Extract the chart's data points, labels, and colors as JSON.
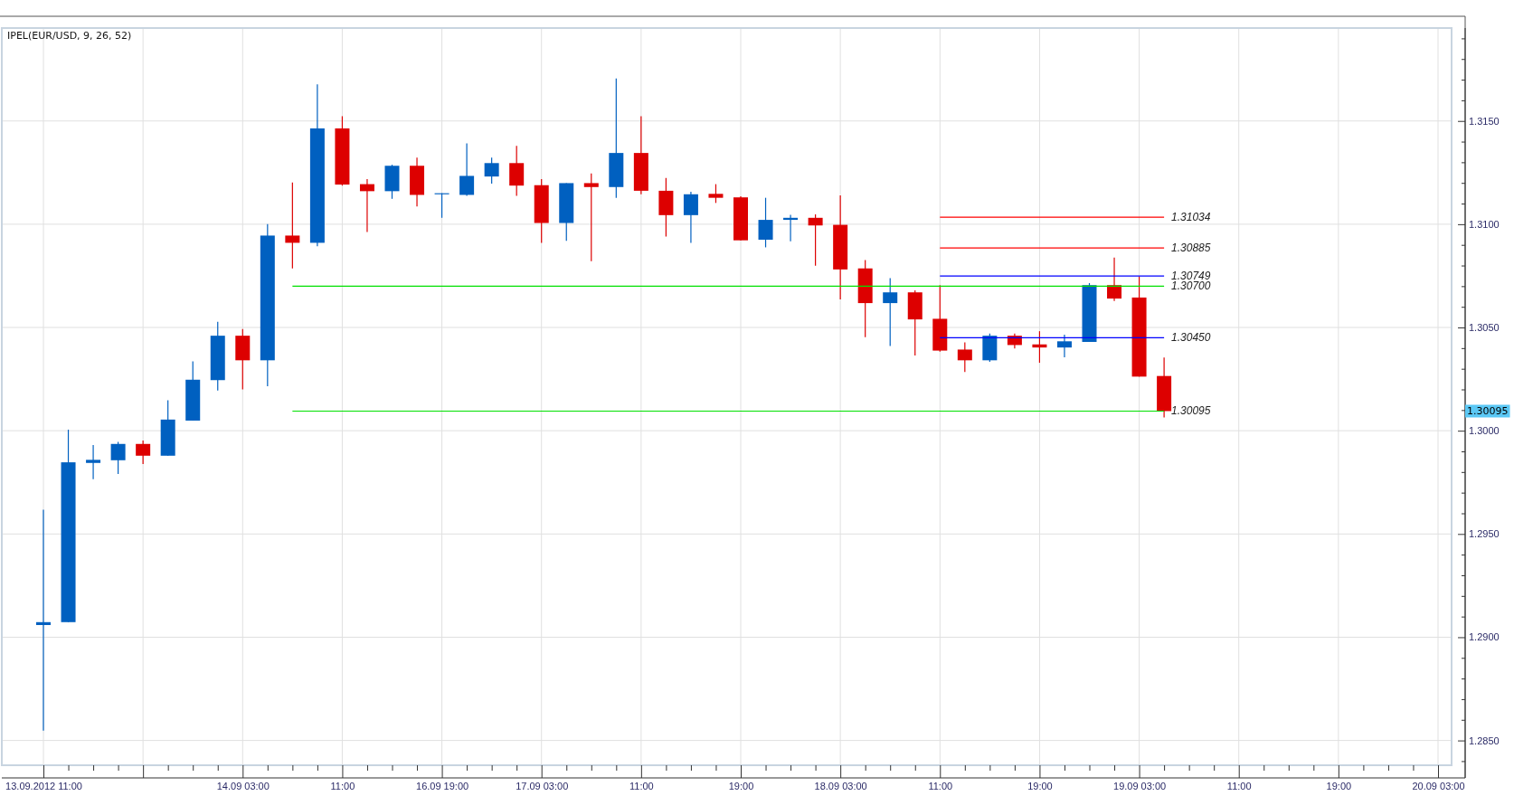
{
  "chart_data": {
    "type": "candlestick",
    "title": "IPEL(EUR/USD, 9, 26, 52)",
    "categories": [
      "13.09.2012 11:00",
      null,
      null,
      null,
      null,
      null,
      null,
      null,
      "14.09 03:00",
      null,
      null,
      null,
      "11:00",
      null,
      null,
      null,
      "16.09 19:00",
      null,
      null,
      null,
      "17.09 03:00",
      null,
      null,
      null,
      "11:00",
      null,
      null,
      null,
      "19:00",
      null,
      null,
      null,
      "18.09 03:00",
      null,
      null,
      null,
      "11:00",
      null,
      null,
      null,
      "19:00",
      null,
      null,
      null,
      "19.09 03:00",
      null,
      null,
      null,
      "11:00",
      null,
      null,
      null,
      "19:00",
      null,
      null,
      null,
      "20.09 03:00"
    ],
    "ohlc": [
      [
        1.29059,
        1.29617,
        1.28548,
        1.29073
      ],
      [
        1.29073,
        1.30005,
        1.29073,
        1.29847
      ],
      [
        1.29844,
        1.29931,
        1.29765,
        1.29859
      ],
      [
        1.29857,
        1.29946,
        1.2979,
        1.29936
      ],
      [
        1.29936,
        1.29953,
        1.29839,
        1.29879
      ],
      [
        1.29879,
        1.30148,
        1.29879,
        1.30054
      ],
      [
        1.30049,
        1.30336,
        1.30049,
        1.30247
      ],
      [
        1.30245,
        1.30527,
        1.30195,
        1.3046
      ],
      [
        1.3046,
        1.30492,
        1.302,
        1.30341
      ],
      [
        1.30341,
        1.31001,
        1.30215,
        1.30945
      ],
      [
        1.30945,
        1.31202,
        1.30786,
        1.3091
      ],
      [
        1.3091,
        1.31677,
        1.30893,
        1.31464
      ],
      [
        1.31464,
        1.31523,
        1.31187,
        1.31192
      ],
      [
        1.31194,
        1.31219,
        1.30962,
        1.3116
      ],
      [
        1.3116,
        1.31288,
        1.31123,
        1.31283
      ],
      [
        1.31283,
        1.31323,
        1.31086,
        1.31142
      ],
      [
        1.31145,
        1.3115,
        1.31031,
        1.3115
      ],
      [
        1.31142,
        1.31392,
        1.31137,
        1.31234
      ],
      [
        1.31231,
        1.31323,
        1.31197,
        1.31296
      ],
      [
        1.31296,
        1.3138,
        1.31137,
        1.31187
      ],
      [
        1.31189,
        1.31219,
        1.3091,
        1.31006
      ],
      [
        1.31006,
        1.31199,
        1.3092,
        1.31199
      ],
      [
        1.31199,
        1.31246,
        1.30821,
        1.3118
      ],
      [
        1.3118,
        1.31706,
        1.31128,
        1.31345
      ],
      [
        1.31345,
        1.31523,
        1.31145,
        1.31162
      ],
      [
        1.31162,
        1.31224,
        1.3094,
        1.31044
      ],
      [
        1.31044,
        1.31157,
        1.3091,
        1.31145
      ],
      [
        1.31147,
        1.31194,
        1.31103,
        1.31128
      ],
      [
        1.3113,
        1.31135,
        1.30922,
        1.30922
      ],
      [
        1.30925,
        1.31128,
        1.30888,
        1.31021
      ],
      [
        1.31021,
        1.31046,
        1.30917,
        1.31031
      ],
      [
        1.31031,
        1.31048,
        1.30799,
        1.30994
      ],
      [
        1.30997,
        1.3114,
        1.30636,
        1.30781
      ],
      [
        1.30786,
        1.30826,
        1.30453,
        1.30618
      ],
      [
        1.30618,
        1.30739,
        1.3041,
        1.3067
      ],
      [
        1.3067,
        1.3068,
        1.30364,
        1.30539
      ],
      [
        1.30542,
        1.30705,
        1.30383,
        1.30388
      ],
      [
        1.30393,
        1.30428,
        1.30284,
        1.30341
      ],
      [
        1.30341,
        1.3047,
        1.30334,
        1.3046
      ],
      [
        1.3046,
        1.3047,
        1.30398,
        1.30415
      ],
      [
        1.30418,
        1.30482,
        1.30329,
        1.30403
      ],
      [
        1.30403,
        1.30465,
        1.30356,
        1.30433
      ],
      [
        1.3043,
        1.30715,
        1.3043,
        1.30705
      ],
      [
        1.30705,
        1.30838,
        1.30628,
        1.3064
      ],
      [
        1.30645,
        1.30747,
        1.30262,
        1.30262
      ],
      [
        1.30265,
        1.30354,
        1.30064,
        1.30095
      ],
      null,
      null,
      null,
      null,
      null,
      null,
      null,
      null,
      null,
      null,
      null
    ],
    "colors": [
      "#0060c0",
      "#0060c0",
      "#0060c0",
      "#0060c0",
      "#dd0000",
      "#0060c0",
      "#0060c0",
      "#0060c0",
      "#dd0000",
      "#0060c0",
      "#dd0000",
      "#0060c0",
      "#dd0000",
      "#dd0000",
      "#0060c0",
      "#dd0000",
      "#0060c0",
      "#0060c0",
      "#0060c0",
      "#dd0000",
      "#dd0000",
      "#0060c0",
      "#dd0000",
      "#0060c0",
      "#dd0000",
      "#dd0000",
      "#0060c0",
      "#dd0000",
      "#dd0000",
      "#0060c0",
      "#0060c0",
      "#dd0000",
      "#dd0000",
      "#dd0000",
      "#0060c0",
      "#dd0000",
      "#dd0000",
      "#dd0000",
      "#0060c0",
      "#dd0000",
      "#dd0000",
      "#0060c0",
      "#0060c0",
      "#dd0000",
      "#dd0000",
      "#dd0000",
      null,
      null,
      null,
      null,
      null,
      null,
      null,
      null,
      null,
      null,
      null
    ],
    "series": [
      {
        "name": "1.31034",
        "type": "line",
        "color": "#ff0000",
        "values": [
          null,
          null,
          null,
          null,
          null,
          null,
          null,
          null,
          null,
          null,
          null,
          null,
          null,
          null,
          null,
          null,
          null,
          null,
          null,
          null,
          null,
          null,
          null,
          null,
          null,
          null,
          null,
          null,
          null,
          null,
          null,
          null,
          null,
          null,
          null,
          null,
          1.31034,
          1.31034,
          1.31034,
          1.31034,
          1.31034,
          1.31034,
          1.31034,
          1.31034,
          1.31034,
          1.31034,
          null,
          null,
          null,
          null,
          null,
          null,
          null,
          null,
          null,
          null,
          null
        ]
      },
      {
        "name": "1.30885",
        "type": "line",
        "color": "#ff0000",
        "values": [
          null,
          null,
          null,
          null,
          null,
          null,
          null,
          null,
          null,
          null,
          null,
          null,
          null,
          null,
          null,
          null,
          null,
          null,
          null,
          null,
          null,
          null,
          null,
          null,
          null,
          null,
          null,
          null,
          null,
          null,
          null,
          null,
          null,
          null,
          null,
          null,
          1.30885,
          1.30885,
          1.30885,
          1.30885,
          1.30885,
          1.30885,
          1.30885,
          1.30885,
          1.30885,
          1.30885,
          null,
          null,
          null,
          null,
          null,
          null,
          null,
          null,
          null,
          null,
          null
        ]
      },
      {
        "name": "1.30749",
        "type": "line",
        "color": "#0000ff",
        "values": [
          null,
          null,
          null,
          null,
          null,
          null,
          null,
          null,
          null,
          null,
          null,
          null,
          null,
          null,
          null,
          null,
          null,
          null,
          null,
          null,
          null,
          null,
          null,
          null,
          null,
          null,
          null,
          null,
          null,
          null,
          null,
          null,
          null,
          null,
          null,
          null,
          1.30749,
          1.30749,
          1.30749,
          1.30749,
          1.30749,
          1.30749,
          1.30749,
          1.30749,
          1.30749,
          1.30749,
          null,
          null,
          null,
          null,
          null,
          null,
          null,
          null,
          null,
          null,
          null
        ]
      },
      {
        "name": "1.30700",
        "type": "line",
        "color": "#00e000",
        "values": [
          null,
          null,
          null,
          null,
          null,
          null,
          null,
          null,
          null,
          null,
          1.307,
          1.307,
          1.307,
          1.307,
          1.307,
          1.307,
          1.307,
          1.307,
          1.307,
          1.307,
          1.307,
          1.307,
          1.307,
          1.307,
          1.307,
          1.307,
          1.307,
          1.307,
          1.307,
          1.307,
          1.307,
          1.307,
          1.307,
          1.307,
          1.307,
          1.307,
          1.307,
          1.307,
          1.307,
          1.307,
          1.307,
          1.307,
          1.307,
          1.307,
          1.307,
          1.307,
          null,
          null,
          null,
          null,
          null,
          null,
          null,
          null,
          null,
          null,
          null
        ]
      },
      {
        "name": "1.30450",
        "type": "line",
        "color": "#0000ff",
        "values": [
          null,
          null,
          null,
          null,
          null,
          null,
          null,
          null,
          null,
          null,
          null,
          null,
          null,
          null,
          null,
          null,
          null,
          null,
          null,
          null,
          null,
          null,
          null,
          null,
          null,
          null,
          null,
          null,
          null,
          null,
          null,
          null,
          null,
          null,
          null,
          null,
          1.3045,
          1.3045,
          1.3045,
          1.3045,
          1.3045,
          1.3045,
          1.3045,
          1.3045,
          1.3045,
          1.3045,
          null,
          null,
          null,
          null,
          null,
          null,
          null,
          null,
          null,
          null,
          null
        ]
      },
      {
        "name": "1.30095",
        "type": "line",
        "color": "#00e000",
        "values": [
          null,
          null,
          null,
          null,
          null,
          null,
          null,
          null,
          null,
          null,
          1.30095,
          1.30095,
          1.30095,
          1.30095,
          1.30095,
          1.30095,
          1.30095,
          1.30095,
          1.30095,
          1.30095,
          1.30095,
          1.30095,
          1.30095,
          1.30095,
          1.30095,
          1.30095,
          1.30095,
          1.30095,
          1.30095,
          1.30095,
          1.30095,
          1.30095,
          1.30095,
          1.30095,
          1.30095,
          1.30095,
          1.30095,
          1.30095,
          1.30095,
          1.30095,
          1.30095,
          1.30095,
          1.30095,
          1.30095,
          1.30095,
          1.30095,
          null,
          null,
          null,
          null,
          null,
          null,
          null,
          null,
          null,
          null,
          null
        ]
      }
    ],
    "annotations": [
      "1.30095"
    ],
    "ylim": [
      1.2838,
      1.3195
    ],
    "yticks": [
      {
        "value": 1.284,
        "label": null
      },
      {
        "value": 1.285,
        "label": "1.2850"
      },
      {
        "value": 1.286,
        "label": null
      },
      {
        "value": 1.287,
        "label": null
      },
      {
        "value": 1.288,
        "label": null
      },
      {
        "value": 1.289,
        "label": null
      },
      {
        "value": 1.29,
        "label": "1.2900"
      },
      {
        "value": 1.291,
        "label": null
      },
      {
        "value": 1.292,
        "label": null
      },
      {
        "value": 1.293,
        "label": null
      },
      {
        "value": 1.294,
        "label": null
      },
      {
        "value": 1.295,
        "label": "1.2950"
      },
      {
        "value": 1.296,
        "label": null
      },
      {
        "value": 1.297,
        "label": null
      },
      {
        "value": 1.298,
        "label": null
      },
      {
        "value": 1.299,
        "label": null
      },
      {
        "value": 1.3,
        "label": "1.3000"
      },
      {
        "value": 1.301,
        "label": null
      },
      {
        "value": 1.302,
        "label": null
      },
      {
        "value": 1.303,
        "label": null
      },
      {
        "value": 1.304,
        "label": null
      },
      {
        "value": 1.305,
        "label": "1.3050"
      },
      {
        "value": 1.306,
        "label": null
      },
      {
        "value": 1.307,
        "label": null
      },
      {
        "value": 1.308,
        "label": null
      },
      {
        "value": 1.309,
        "label": null
      },
      {
        "value": 1.31,
        "label": "1.3100"
      },
      {
        "value": 1.311,
        "label": null
      },
      {
        "value": 1.312,
        "label": null
      },
      {
        "value": 1.313,
        "label": null
      },
      {
        "value": 1.314,
        "label": null
      },
      {
        "value": 1.315,
        "label": "1.3150"
      },
      {
        "value": 1.316,
        "label": null
      },
      {
        "value": 1.317,
        "label": null
      },
      {
        "value": 1.318,
        "label": null
      },
      {
        "value": 1.319,
        "label": null
      }
    ],
    "grid": true
  }
}
